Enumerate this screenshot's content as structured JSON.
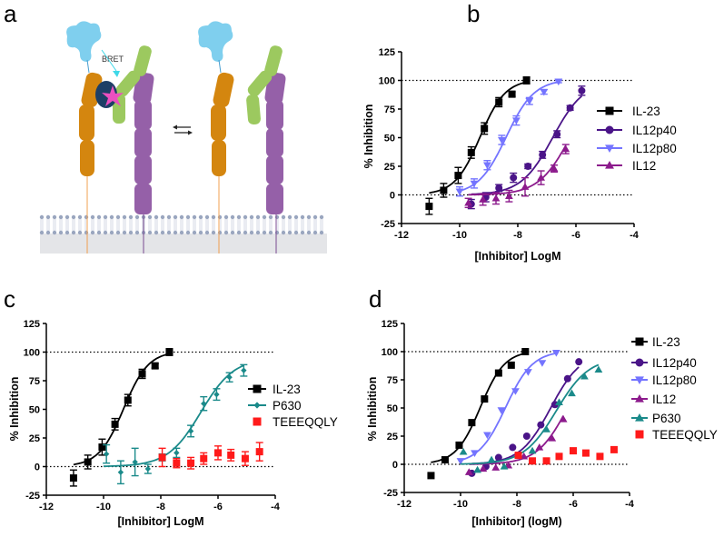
{
  "panels": {
    "a": "a",
    "b": "b",
    "c": "c",
    "d": "d"
  },
  "schematic": {
    "bret_label": "BRET",
    "colors": {
      "cytokine": "#7fcfee",
      "receptor1": "#d4860f",
      "receptor2": "#9560a8",
      "subunit": "#9cc95f",
      "nanoluc": "#1d3f66",
      "fluor": "#ec4fc0",
      "bret_arrow": "#3fd8e8"
    }
  },
  "chart_data": [
    {
      "panel": "b",
      "type": "scatter",
      "xlabel": "[Inhibitor] LogM",
      "ylabel": "% Inhibition",
      "xlim": [
        -12,
        -4
      ],
      "ylim": [
        -25,
        125
      ],
      "xticks": [
        -12,
        -10,
        -8,
        -6,
        -4
      ],
      "yticks": [
        -25,
        0,
        25,
        50,
        75,
        100,
        125
      ],
      "reference_lines": [
        0,
        100
      ],
      "legend": "right",
      "series": [
        {
          "name": "IL-23",
          "color": "#000000",
          "marker": "square",
          "line": true,
          "points": [
            [
              -11.05,
              -10,
              7
            ],
            [
              -10.55,
              4,
              6
            ],
            [
              -10.05,
              17,
              7
            ],
            [
              -9.6,
              37,
              5
            ],
            [
              -9.15,
              58,
              5
            ],
            [
              -8.65,
              81,
              4
            ],
            [
              -8.2,
              88,
              2
            ],
            [
              -7.7,
              100,
              3
            ]
          ],
          "fit": {
            "logIC50": -9.3,
            "hill": 1.0,
            "top": 101,
            "bottom": 0,
            "range": [
              -11.05,
              -7.7
            ]
          }
        },
        {
          "name": "IL12p40",
          "color": "#4a1488",
          "marker": "circle",
          "line": true,
          "points": [
            [
              -9.6,
              -8,
              4
            ],
            [
              -9.1,
              -2,
              4
            ],
            [
              -8.65,
              6,
              3
            ],
            [
              -8.15,
              15,
              4
            ],
            [
              -7.65,
              25,
              2
            ],
            [
              -7.15,
              35,
              3
            ],
            [
              -6.65,
              53,
              3
            ],
            [
              -6.2,
              76,
              2
            ],
            [
              -5.8,
              91,
              4
            ]
          ],
          "fit": {
            "logIC50": -6.8,
            "hill": 0.8,
            "top": 100,
            "bottom": 0,
            "range": [
              -9.6,
              -5.8
            ]
          }
        },
        {
          "name": "IL12p80",
          "color": "#7474ff",
          "marker": "triangle-down",
          "line": true,
          "points": [
            [
              -10,
              3,
              4
            ],
            [
              -9.5,
              10,
              4
            ],
            [
              -9.05,
              26,
              4
            ],
            [
              -8.55,
              48,
              4
            ],
            [
              -8.05,
              65,
              4
            ],
            [
              -7.6,
              82,
              3
            ],
            [
              -7.1,
              90,
              2
            ],
            [
              -6.6,
              99,
              1
            ]
          ],
          "fit": {
            "logIC50": -8.4,
            "hill": 0.9,
            "top": 101,
            "bottom": 0,
            "range": [
              -10,
              -6.6
            ]
          }
        },
        {
          "name": "IL12",
          "color": "#8c1a8c",
          "marker": "triangle-up",
          "line": true,
          "points": [
            [
              -9.7,
              -7,
              4
            ],
            [
              -9.2,
              -4,
              5
            ],
            [
              -8.75,
              -3,
              5
            ],
            [
              -8.3,
              -1,
              5
            ],
            [
              -7.75,
              7,
              8
            ],
            [
              -7.2,
              15,
              6
            ],
            [
              -6.75,
              23,
              3
            ],
            [
              -6.35,
              40,
              4
            ]
          ],
          "fit": {
            "logIC50": -6.2,
            "hill": 0.8,
            "top": 100,
            "bottom": 0,
            "range": [
              -9.7,
              -6.35
            ]
          }
        }
      ]
    },
    {
      "panel": "c",
      "type": "scatter",
      "xlabel": "[Inhibitor] LogM",
      "ylabel": "% Inhibition",
      "xlim": [
        -12,
        -4
      ],
      "ylim": [
        -25,
        125
      ],
      "xticks": [
        -12,
        -10,
        -8,
        -6,
        -4
      ],
      "yticks": [
        -25,
        0,
        25,
        50,
        75,
        100,
        125
      ],
      "reference_lines": [
        0,
        100
      ],
      "legend": "right",
      "series": [
        {
          "name": "IL-23",
          "color": "#000000",
          "marker": "square",
          "line": true,
          "points": [
            [
              -11.05,
              -10,
              7
            ],
            [
              -10.55,
              4,
              6
            ],
            [
              -10.05,
              17,
              7
            ],
            [
              -9.6,
              37,
              5
            ],
            [
              -9.15,
              58,
              5
            ],
            [
              -8.65,
              81,
              4
            ],
            [
              -8.2,
              88,
              2
            ],
            [
              -7.7,
              100,
              3
            ]
          ],
          "fit": {
            "logIC50": -9.3,
            "hill": 1.0,
            "top": 101,
            "bottom": 0,
            "range": [
              -11.05,
              -7.7
            ]
          }
        },
        {
          "name": "P630",
          "color": "#1a8a8a",
          "marker": "diamond",
          "line": true,
          "points": [
            [
              -9.9,
              11,
              8
            ],
            [
              -9.4,
              -5,
              10
            ],
            [
              -8.9,
              4,
              12
            ],
            [
              -8.45,
              -2,
              4
            ],
            [
              -7.95,
              8,
              3
            ],
            [
              -7.45,
              12,
              4
            ],
            [
              -6.95,
              31,
              5
            ],
            [
              -6.5,
              55,
              6
            ],
            [
              -6.05,
              63,
              5
            ],
            [
              -5.6,
              78,
              4
            ],
            [
              -5.1,
              84,
              5
            ]
          ],
          "fit": {
            "logIC50": -6.6,
            "hill": 0.75,
            "top": 95,
            "bottom": 0,
            "range": [
              -10,
              -5.1
            ]
          }
        },
        {
          "name": "TEEEQQLY",
          "color": "#ff1a1a",
          "marker": "square",
          "line": false,
          "points": [
            [
              -7.95,
              8,
              8
            ],
            [
              -7.45,
              3,
              4
            ],
            [
              -6.95,
              3,
              5
            ],
            [
              -6.5,
              7,
              5
            ],
            [
              -6.0,
              12,
              6
            ],
            [
              -5.55,
              10,
              5
            ],
            [
              -5.05,
              7,
              6
            ],
            [
              -4.55,
              13,
              8
            ]
          ]
        }
      ]
    },
    {
      "panel": "d",
      "type": "scatter",
      "xlabel": "[Inhibitor] (logM)",
      "ylabel": "% Inhibition",
      "xlim": [
        -12,
        -4
      ],
      "ylim": [
        -25,
        125
      ],
      "xticks": [
        -12,
        -10,
        -8,
        -6,
        -4
      ],
      "yticks": [
        -25,
        0,
        25,
        50,
        75,
        100,
        125
      ],
      "reference_lines": [
        0,
        100
      ],
      "legend": "right",
      "series": [
        {
          "name": "IL-23",
          "color": "#000000",
          "marker": "square",
          "line": true,
          "points": [
            [
              -11.05,
              -10
            ],
            [
              -10.55,
              4
            ],
            [
              -10.05,
              17
            ],
            [
              -9.6,
              37
            ],
            [
              -9.15,
              58
            ],
            [
              -8.65,
              81
            ],
            [
              -8.2,
              88
            ],
            [
              -7.7,
              100
            ]
          ],
          "fit": {
            "logIC50": -9.3,
            "hill": 1.0,
            "top": 101,
            "bottom": 0,
            "range": [
              -11.05,
              -7.7
            ]
          }
        },
        {
          "name": "IL12p40",
          "color": "#4a1488",
          "marker": "circle",
          "line": true,
          "points": [
            [
              -9.6,
              -8
            ],
            [
              -9.1,
              -2
            ],
            [
              -8.65,
              6
            ],
            [
              -8.15,
              15
            ],
            [
              -7.65,
              25
            ],
            [
              -7.15,
              35
            ],
            [
              -6.65,
              53
            ],
            [
              -6.2,
              76
            ],
            [
              -5.8,
              91
            ]
          ],
          "fit": {
            "logIC50": -6.8,
            "hill": 0.8,
            "top": 100,
            "bottom": 0,
            "range": [
              -9.6,
              -5.8
            ]
          }
        },
        {
          "name": "IL12p80",
          "color": "#7474ff",
          "marker": "triangle-down",
          "line": true,
          "points": [
            [
              -10,
              3
            ],
            [
              -9.5,
              10
            ],
            [
              -9.05,
              26
            ],
            [
              -8.55,
              48
            ],
            [
              -8.05,
              65
            ],
            [
              -7.6,
              82
            ],
            [
              -7.1,
              90
            ],
            [
              -6.6,
              99
            ]
          ],
          "fit": {
            "logIC50": -8.4,
            "hill": 0.9,
            "top": 101,
            "bottom": 0,
            "range": [
              -10,
              -6.6
            ]
          }
        },
        {
          "name": "IL12",
          "color": "#8c1a8c",
          "marker": "triangle-up",
          "line": true,
          "points": [
            [
              -9.7,
              -7
            ],
            [
              -9.2,
              -4
            ],
            [
              -8.75,
              -3
            ],
            [
              -8.3,
              -1
            ],
            [
              -7.75,
              7
            ],
            [
              -7.2,
              15
            ],
            [
              -6.75,
              23
            ],
            [
              -6.35,
              40
            ]
          ],
          "fit": {
            "logIC50": -6.2,
            "hill": 0.8,
            "top": 100,
            "bottom": 0,
            "range": [
              -9.7,
              -6.35
            ]
          }
        },
        {
          "name": "P630",
          "color": "#1a8a8a",
          "marker": "triangle-up",
          "line": true,
          "points": [
            [
              -9.9,
              11
            ],
            [
              -9.4,
              -5
            ],
            [
              -8.9,
              4
            ],
            [
              -8.45,
              -2
            ],
            [
              -7.95,
              8
            ],
            [
              -7.45,
              12
            ],
            [
              -6.95,
              31
            ],
            [
              -6.5,
              55
            ],
            [
              -6.05,
              63
            ],
            [
              -5.6,
              78
            ],
            [
              -5.1,
              84
            ]
          ],
          "fit": {
            "logIC50": -6.6,
            "hill": 0.75,
            "top": 95,
            "bottom": 0,
            "range": [
              -10,
              -5.1
            ]
          }
        },
        {
          "name": "TEEEQQLY",
          "color": "#ff1a1a",
          "marker": "square",
          "line": false,
          "points": [
            [
              -7.95,
              8
            ],
            [
              -7.45,
              3
            ],
            [
              -6.95,
              3
            ],
            [
              -6.5,
              7
            ],
            [
              -6.0,
              12
            ],
            [
              -5.55,
              10
            ],
            [
              -5.05,
              7
            ],
            [
              -4.55,
              13
            ]
          ]
        }
      ]
    }
  ]
}
